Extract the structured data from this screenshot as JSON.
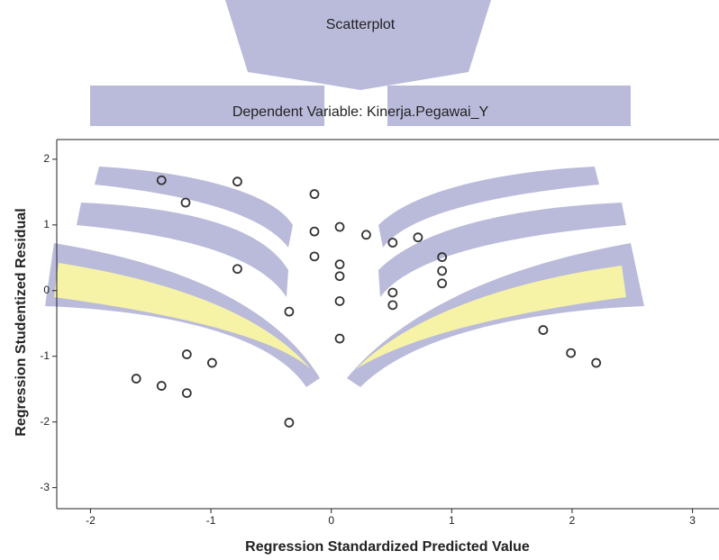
{
  "chart_data": {
    "type": "scatter",
    "title": "Scatterplot",
    "subtitle": "Dependent Variable: Kinerja.Pegawai_Y",
    "x_label": "Regression Standardized Predicted Value",
    "y_label": "Regression Studentized Residual",
    "x": [
      -1.41,
      -0.78,
      -1.21,
      -0.14,
      -0.14,
      0.07,
      0.29,
      0.51,
      0.72,
      0.92,
      0.92,
      0.92,
      -0.14,
      0.07,
      0.07,
      -0.78,
      0.51,
      0.51,
      0.07,
      -0.35,
      0.07,
      1.76,
      1.99,
      2.2,
      -1.2,
      -0.99,
      -1.62,
      -1.41,
      -1.2,
      -0.35
    ],
    "values": [
      1.68,
      1.66,
      1.34,
      1.47,
      0.9,
      0.97,
      0.85,
      0.73,
      0.81,
      0.51,
      0.3,
      0.11,
      0.52,
      0.4,
      0.22,
      0.33,
      -0.03,
      -0.22,
      -0.16,
      -0.32,
      -0.73,
      -0.6,
      -0.95,
      -1.1,
      -0.97,
      -1.1,
      -1.34,
      -1.45,
      -1.56,
      -2.01
    ],
    "color": "#333333",
    "xlim": [
      -2.28,
      3.22
    ],
    "ylim": [
      -3.32,
      2.3
    ],
    "xticks": [
      -2,
      -1,
      0,
      1,
      2,
      3
    ],
    "yticks": [
      2,
      1,
      0,
      -1,
      -2,
      -3
    ],
    "grid": false
  }
}
